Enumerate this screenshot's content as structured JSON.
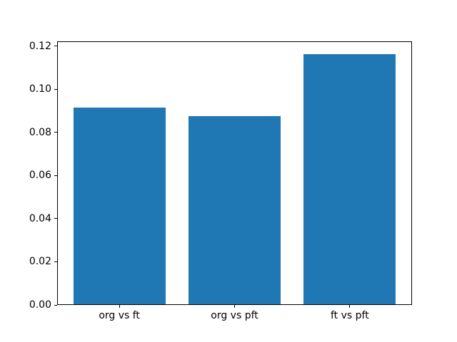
{
  "chart_data": {
    "type": "bar",
    "title": "",
    "xlabel": "",
    "ylabel": "",
    "categories": [
      "org vs ft",
      "org vs pft",
      "ft vs pft"
    ],
    "values": [
      0.0916,
      0.0878,
      0.1164
    ],
    "ylim": [
      0,
      0.1222
    ],
    "yticks": [
      0,
      0.02,
      0.04,
      0.06,
      0.08,
      0.1,
      0.12
    ],
    "ytick_labels": [
      "0.00",
      "0.02",
      "0.04",
      "0.06",
      "0.08",
      "0.10",
      "0.12"
    ],
    "bar_color": "#1f77b4",
    "axis_color": "#000000",
    "background_color": "#ffffff",
    "bar_width_fraction": 0.8,
    "x_margin": 0.54,
    "grid": false,
    "legend_position": "none"
  }
}
